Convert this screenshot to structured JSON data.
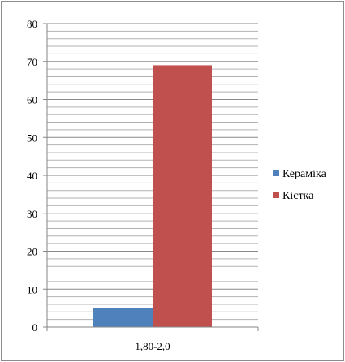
{
  "chart_data": {
    "type": "bar",
    "categories": [
      "1,80-2,0"
    ],
    "series": [
      {
        "name": "Кераміка",
        "values": [
          5
        ],
        "color": "#4f81bd"
      },
      {
        "name": "Кістка",
        "values": [
          69
        ],
        "color": "#c0504d"
      }
    ],
    "title": "",
    "xlabel": "",
    "ylabel": "",
    "ylim": [
      0,
      80
    ],
    "y_ticks": [
      "0",
      "10",
      "20",
      "30",
      "40",
      "50",
      "60",
      "70",
      "80"
    ],
    "grid": true,
    "legend_position": "right"
  }
}
